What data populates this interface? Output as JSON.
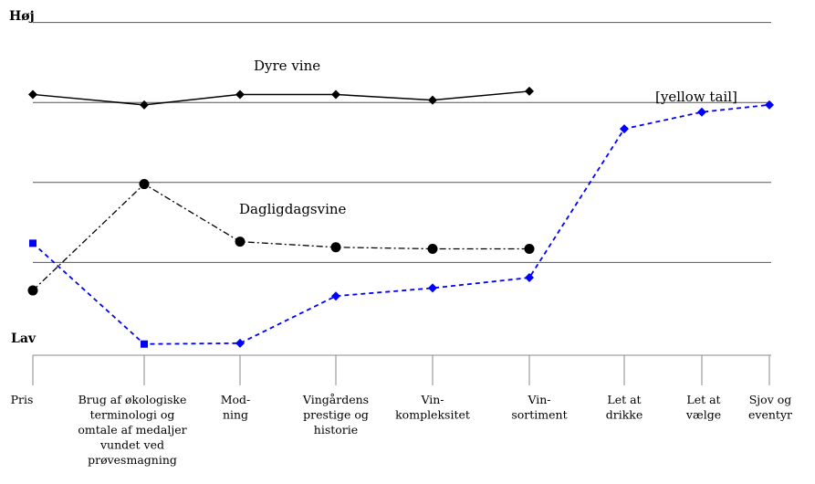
{
  "chart_data": {
    "type": "line",
    "y_high_label": "Høj",
    "y_low_label": "Lav",
    "ylim": [
      0,
      4
    ],
    "grid": true,
    "categories": [
      [
        "Pris"
      ],
      [
        "Brug af økologiske",
        "terminologi og",
        "omtale af medaljer",
        "vundet ved",
        "prøvesmagning"
      ],
      [
        "Mod-",
        "ning"
      ],
      [
        "Vingårdens",
        "prestige og",
        "historie"
      ],
      [
        "Vin-",
        "kompleksitet"
      ],
      [
        "Vin-",
        "sortiment"
      ],
      [
        "Let at",
        "drikke"
      ],
      [
        "Let at",
        "vælge"
      ],
      [
        "Sjov og",
        "eventyr"
      ]
    ],
    "series": [
      {
        "name": "Dyre vine",
        "color": "#000000",
        "line_style": "solid",
        "marker": "diamond",
        "values": [
          3.1,
          2.97,
          3.1,
          3.1,
          3.03,
          3.14,
          null,
          null,
          null
        ]
      },
      {
        "name": "Dagligdagsvine",
        "color": "#000000",
        "line_style": "dash-dot",
        "marker": "circle",
        "values": [
          0.65,
          1.98,
          1.26,
          1.19,
          1.17,
          1.17,
          null,
          null,
          null
        ]
      },
      {
        "name": "[yellow tail]",
        "color": "#0000ff",
        "line_style": "dashed",
        "marker": "diamond",
        "values": [
          1.24,
          -0.02,
          -0.01,
          0.58,
          0.68,
          0.81,
          2.67,
          2.88,
          2.97
        ]
      }
    ]
  }
}
